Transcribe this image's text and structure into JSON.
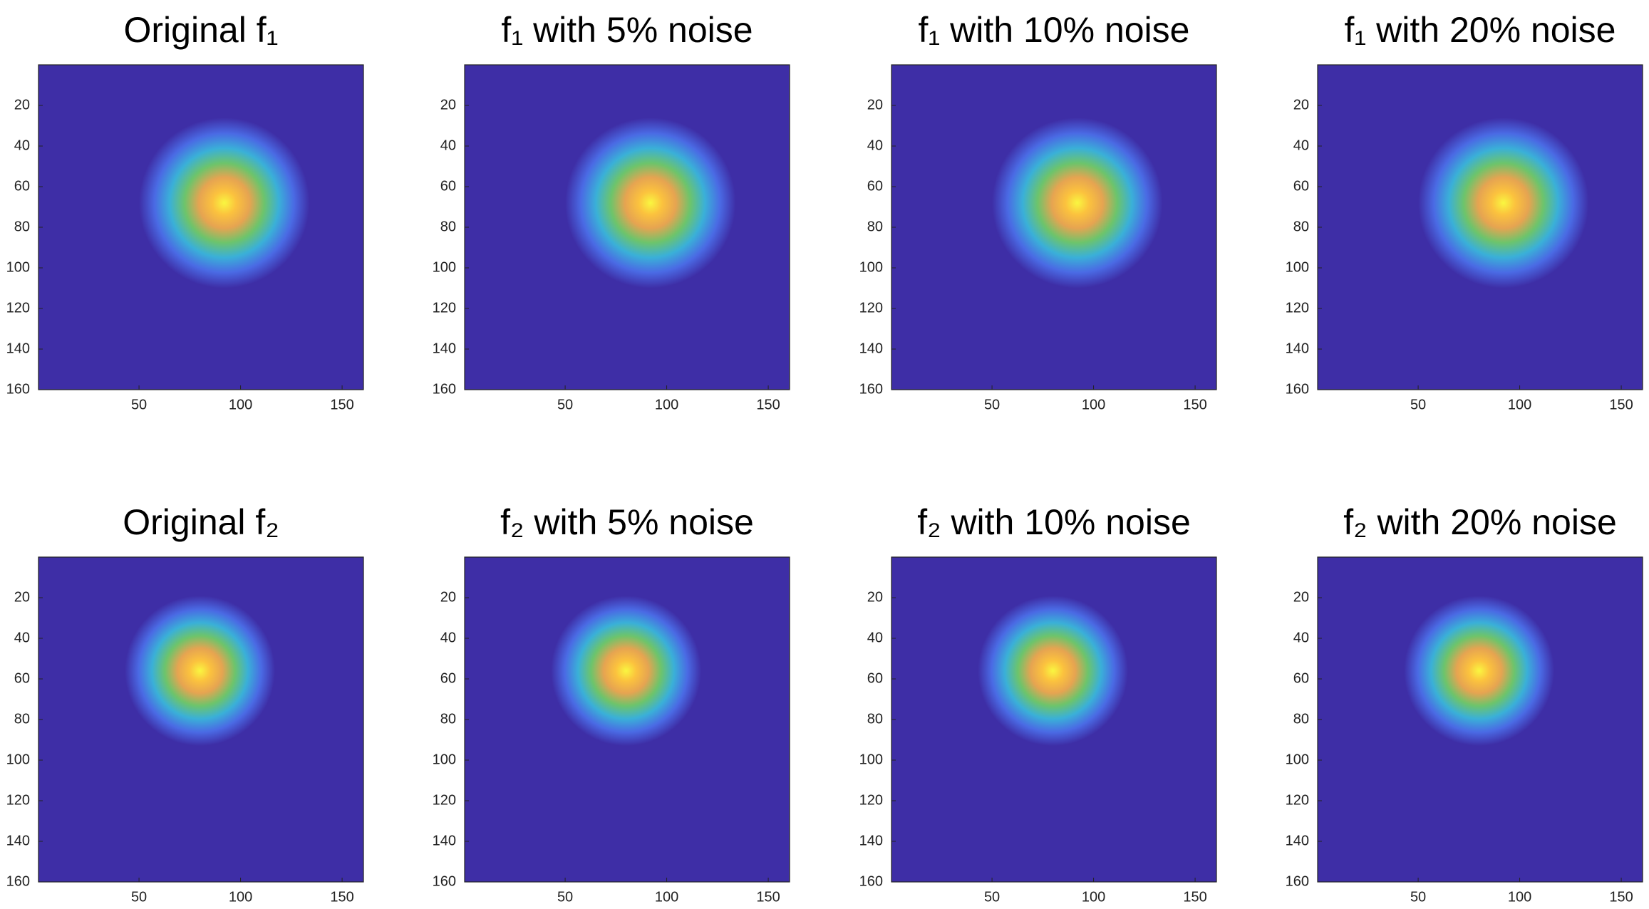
{
  "chart_data": [
    {
      "type": "image",
      "title": "Original f₁",
      "xlim": [
        0.5,
        160.5
      ],
      "ylim": [
        0,
        160
      ],
      "xticks": [
        50,
        100,
        150
      ],
      "yticks": [
        20,
        40,
        60,
        80,
        100,
        120,
        140,
        160
      ],
      "background": "#3e2ea6",
      "colormap": [
        "#f9f640",
        "#fbc23e",
        "#e6a451",
        "#6dc46b",
        "#3ab0d8",
        "#4a6ae4",
        "#3e2ea6"
      ],
      "blob": {
        "x": 92,
        "y": 68,
        "r": 42
      }
    },
    {
      "type": "image",
      "title": "f₁ with 5% noise",
      "xlim": [
        0.5,
        160.5
      ],
      "ylim": [
        0,
        160
      ],
      "xticks": [
        50,
        100,
        150
      ],
      "yticks": [
        20,
        40,
        60,
        80,
        100,
        120,
        140,
        160
      ],
      "background": "#3e2ea6",
      "colormap": [
        "#f9f640",
        "#fbc23e",
        "#e6a451",
        "#6dc46b",
        "#3ab0d8",
        "#4a6ae4",
        "#3e2ea6"
      ],
      "blob": {
        "x": 92,
        "y": 68,
        "r": 42
      }
    },
    {
      "type": "image",
      "title": "f₁ with 10% noise",
      "xlim": [
        0.5,
        160.5
      ],
      "ylim": [
        0,
        160
      ],
      "xticks": [
        50,
        100,
        150
      ],
      "yticks": [
        20,
        40,
        60,
        80,
        100,
        120,
        140,
        160
      ],
      "background": "#3e2ea6",
      "colormap": [
        "#f9f640",
        "#fbc23e",
        "#e6a451",
        "#6dc46b",
        "#3ab0d8",
        "#4a6ae4",
        "#3e2ea6"
      ],
      "blob": {
        "x": 92,
        "y": 68,
        "r": 42
      }
    },
    {
      "type": "image",
      "title": "f₁ with 20% noise",
      "xlim": [
        0.5,
        160.5
      ],
      "ylim": [
        0,
        160
      ],
      "xticks": [
        50,
        100,
        150
      ],
      "yticks": [
        20,
        40,
        60,
        80,
        100,
        120,
        140,
        160
      ],
      "background": "#3e2ea6",
      "colormap": [
        "#f9f640",
        "#fbc23e",
        "#e6a451",
        "#6dc46b",
        "#3ab0d8",
        "#4a6ae4",
        "#3e2ea6"
      ],
      "blob": {
        "x": 92,
        "y": 68,
        "r": 42
      }
    },
    {
      "type": "image",
      "title": "Original f₂",
      "xlim": [
        0.5,
        160.5
      ],
      "ylim": [
        0,
        160
      ],
      "xticks": [
        50,
        100,
        150
      ],
      "yticks": [
        20,
        40,
        60,
        80,
        100,
        120,
        140,
        160
      ],
      "background": "#3e2ea6",
      "colormap": [
        "#f9f640",
        "#fbc23e",
        "#e6a451",
        "#6dc46b",
        "#3ab0d8",
        "#4a6ae4",
        "#3e2ea6"
      ],
      "blob": {
        "x": 80,
        "y": 56,
        "r": 37
      }
    },
    {
      "type": "image",
      "title": "f₂ with 5% noise",
      "xlim": [
        0.5,
        160.5
      ],
      "ylim": [
        0,
        160
      ],
      "xticks": [
        50,
        100,
        150
      ],
      "yticks": [
        20,
        40,
        60,
        80,
        100,
        120,
        140,
        160
      ],
      "background": "#3e2ea6",
      "colormap": [
        "#f9f640",
        "#fbc23e",
        "#e6a451",
        "#6dc46b",
        "#3ab0d8",
        "#4a6ae4",
        "#3e2ea6"
      ],
      "blob": {
        "x": 80,
        "y": 56,
        "r": 37
      }
    },
    {
      "type": "image",
      "title": "f₂ with 10% noise",
      "xlim": [
        0.5,
        160.5
      ],
      "ylim": [
        0,
        160
      ],
      "xticks": [
        50,
        100,
        150
      ],
      "yticks": [
        20,
        40,
        60,
        80,
        100,
        120,
        140,
        160
      ],
      "background": "#3e2ea6",
      "colormap": [
        "#f9f640",
        "#fbc23e",
        "#e6a451",
        "#6dc46b",
        "#3ab0d8",
        "#4a6ae4",
        "#3e2ea6"
      ],
      "blob": {
        "x": 80,
        "y": 56,
        "r": 37
      }
    },
    {
      "type": "image",
      "title": "f₂ with 20% noise",
      "xlim": [
        0.5,
        160.5
      ],
      "ylim": [
        0,
        160
      ],
      "xticks": [
        50,
        100,
        150
      ],
      "yticks": [
        20,
        40,
        60,
        80,
        100,
        120,
        140,
        160
      ],
      "background": "#3e2ea6",
      "colormap": [
        "#f9f640",
        "#fbc23e",
        "#e6a451",
        "#6dc46b",
        "#3ab0d8",
        "#4a6ae4",
        "#3e2ea6"
      ],
      "blob": {
        "x": 80,
        "y": 56,
        "r": 37
      }
    }
  ]
}
